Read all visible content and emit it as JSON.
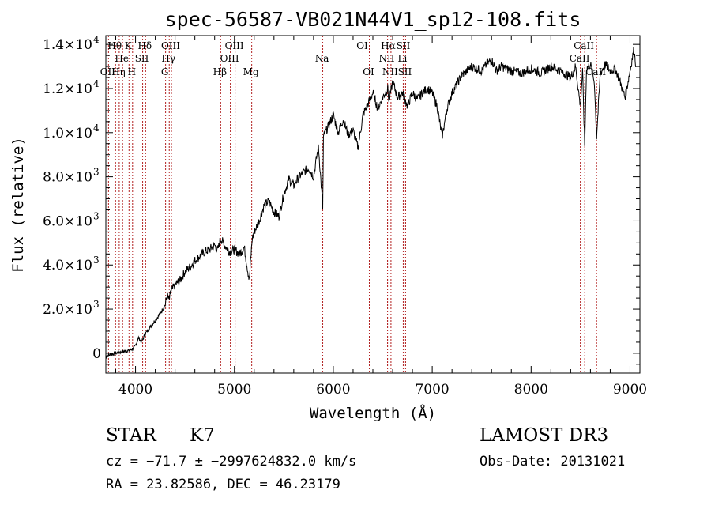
{
  "chart_data": {
    "type": "line",
    "title": "spec-56587-VB021N44V1_sp12-108.fits",
    "xlabel": "Wavelength (Å)",
    "ylabel": "Flux (relative)",
    "xlim": [
      3700,
      9100
    ],
    "ylim": [
      -900,
      14400
    ],
    "x_ticks": [
      {
        "value": 4000,
        "label": "4000"
      },
      {
        "value": 5000,
        "label": "5000"
      },
      {
        "value": 6000,
        "label": "6000"
      },
      {
        "value": 7000,
        "label": "7000"
      },
      {
        "value": 8000,
        "label": "8000"
      },
      {
        "value": 9000,
        "label": "9000"
      }
    ],
    "y_ticks": [
      {
        "value": 0,
        "mantissa": "0",
        "exponent": ""
      },
      {
        "value": 2000,
        "mantissa": "2.0×10",
        "exponent": "3"
      },
      {
        "value": 4000,
        "mantissa": "4.0×10",
        "exponent": "3"
      },
      {
        "value": 6000,
        "mantissa": "6.0×10",
        "exponent": "3"
      },
      {
        "value": 8000,
        "mantissa": "8.0×10",
        "exponent": "3"
      },
      {
        "value": 10000,
        "mantissa": "1.0×10",
        "exponent": "4"
      },
      {
        "value": 12000,
        "mantissa": "1.2×10",
        "exponent": "4"
      },
      {
        "value": 14000,
        "mantissa": "1.4×10",
        "exponent": "4"
      }
    ],
    "line_color": "#000000",
    "marker_color": "#b22222",
    "spectrum": {
      "x": [
        3700,
        3750,
        3800,
        3850,
        3900,
        3930,
        3960,
        3990,
        4000,
        4030,
        4060,
        4080,
        4100,
        4120,
        4150,
        4200,
        4250,
        4300,
        4320,
        4340,
        4360,
        4400,
        4450,
        4500,
        4550,
        4600,
        4650,
        4700,
        4750,
        4800,
        4830,
        4860,
        4900,
        4950,
        5000,
        5050,
        5100,
        5150,
        5180,
        5200,
        5250,
        5300,
        5350,
        5400,
        5450,
        5500,
        5550,
        5600,
        5650,
        5700,
        5750,
        5800,
        5850,
        5893,
        5900,
        5950,
        6000,
        6050,
        6100,
        6150,
        6200,
        6250,
        6300,
        6350,
        6400,
        6450,
        6500,
        6550,
        6563,
        6600,
        6650,
        6700,
        6750,
        6800,
        6850,
        6900,
        6950,
        7000,
        7050,
        7100,
        7150,
        7200,
        7300,
        7400,
        7500,
        7550,
        7600,
        7650,
        7700,
        7800,
        7900,
        8000,
        8100,
        8200,
        8300,
        8400,
        8450,
        8498,
        8520,
        8542,
        8560,
        8600,
        8640,
        8662,
        8700,
        8750,
        8800,
        8850,
        8900,
        8950,
        9000,
        9020,
        9040,
        9060
      ],
      "y": [
        -150,
        -50,
        0,
        60,
        100,
        120,
        180,
        250,
        350,
        700,
        500,
        700,
        900,
        1000,
        1200,
        1500,
        1800,
        2200,
        2600,
        2400,
        2800,
        3100,
        3300,
        3700,
        3900,
        4200,
        4400,
        4600,
        4700,
        4900,
        4650,
        5200,
        4900,
        4600,
        4700,
        4500,
        4800,
        3300,
        5200,
        5500,
        6000,
        6700,
        6900,
        6400,
        6200,
        7200,
        7900,
        7600,
        8000,
        8200,
        8400,
        8000,
        9400,
        6600,
        9800,
        10300,
        10800,
        10000,
        10600,
        9900,
        10100,
        9300,
        10800,
        11300,
        11800,
        11100,
        11600,
        12000,
        11400,
        12300,
        11600,
        11800,
        11200,
        11800,
        11500,
        11800,
        12000,
        11800,
        11200,
        9800,
        11100,
        11800,
        12600,
        13000,
        12800,
        13100,
        13300,
        12800,
        13000,
        12800,
        12700,
        12900,
        12700,
        13000,
        12800,
        12500,
        13000,
        11200,
        12800,
        9400,
        12900,
        13100,
        12300,
        9800,
        12700,
        13100,
        12800,
        12900,
        12300,
        11600,
        12800,
        13300,
        13800,
        13000
      ]
    },
    "lines": [
      {
        "wave": 3727,
        "label": "OII",
        "row": 3
      },
      {
        "wave": 3798,
        "label": "Hθ",
        "row": 1
      },
      {
        "wave": 3835,
        "label": "Hη",
        "row": 3
      },
      {
        "wave": 3869,
        "label": "He",
        "row": 2
      },
      {
        "wave": 3934,
        "label": "K",
        "row": 1
      },
      {
        "wave": 3970,
        "label": "H",
        "row": 3
      },
      {
        "wave": 4072,
        "label": "SII",
        "row": 2
      },
      {
        "wave": 4102,
        "label": "Hδ",
        "row": 1
      },
      {
        "wave": 4304,
        "label": "G",
        "row": 3
      },
      {
        "wave": 4341,
        "label": "Hγ",
        "row": 2
      },
      {
        "wave": 4363,
        "label": "OIII",
        "row": 1
      },
      {
        "wave": 4861,
        "label": "Hβ",
        "row": 3
      },
      {
        "wave": 4959,
        "label": "OIII",
        "row": 2
      },
      {
        "wave": 5007,
        "label": "OIII",
        "row": 1
      },
      {
        "wave": 5175,
        "label": "Mg",
        "row": 3
      },
      {
        "wave": 5893,
        "label": "Na",
        "row": 2
      },
      {
        "wave": 6300,
        "label": "OI",
        "row": 1
      },
      {
        "wave": 6364,
        "label": "OI",
        "row": 3
      },
      {
        "wave": 6548,
        "label": "NII",
        "row": 2
      },
      {
        "wave": 6563,
        "label": "Hα",
        "row": 1
      },
      {
        "wave": 6583,
        "label": "NII",
        "row": 3
      },
      {
        "wave": 6707,
        "label": "Li",
        "row": 2
      },
      {
        "wave": 6716,
        "label": "SII",
        "row": 1
      },
      {
        "wave": 6731,
        "label": "SII",
        "row": 3
      },
      {
        "wave": 8498,
        "label": "CaII",
        "row": 2
      },
      {
        "wave": 8542,
        "label": "CaII",
        "row": 1
      },
      {
        "wave": 8662,
        "label": "CaII",
        "row": 3
      }
    ]
  },
  "info": {
    "object_class": "STAR",
    "subclass": "K7",
    "survey": "LAMOST DR3",
    "redshift_line": "cz = −71.7 ± −2997624832.0 km/s",
    "obs_date": "Obs-Date: 20131021",
    "coords": "RA =  23.82586, DEC =  46.23179"
  }
}
